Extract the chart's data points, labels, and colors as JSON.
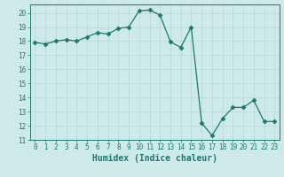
{
  "x": [
    0,
    1,
    2,
    3,
    4,
    5,
    6,
    7,
    8,
    9,
    10,
    11,
    12,
    13,
    14,
    15,
    16,
    17,
    18,
    19,
    20,
    21,
    22,
    23
  ],
  "y": [
    17.9,
    17.8,
    18.0,
    18.1,
    18.0,
    18.3,
    18.6,
    18.5,
    18.9,
    19.0,
    20.15,
    20.2,
    19.85,
    17.95,
    17.55,
    19.0,
    12.2,
    11.3,
    12.5,
    13.3,
    13.3,
    13.8,
    12.3,
    12.3
  ],
  "line_color": "#1a7a6e",
  "marker": "D",
  "marker_size": 2.5,
  "bg_color": "#ceeae8",
  "grid_color": "#b8d8d5",
  "xlabel": "Humidex (Indice chaleur)",
  "xlim": [
    -0.5,
    23.5
  ],
  "ylim": [
    11,
    20.6
  ],
  "yticks": [
    11,
    12,
    13,
    14,
    15,
    16,
    17,
    18,
    19,
    20
  ],
  "xticks": [
    0,
    1,
    2,
    3,
    4,
    5,
    6,
    7,
    8,
    9,
    10,
    11,
    12,
    13,
    14,
    15,
    16,
    17,
    18,
    19,
    20,
    21,
    22,
    23
  ],
  "tick_color": "#1a7a6e",
  "label_fontsize": 7,
  "tick_fontsize": 5.5
}
